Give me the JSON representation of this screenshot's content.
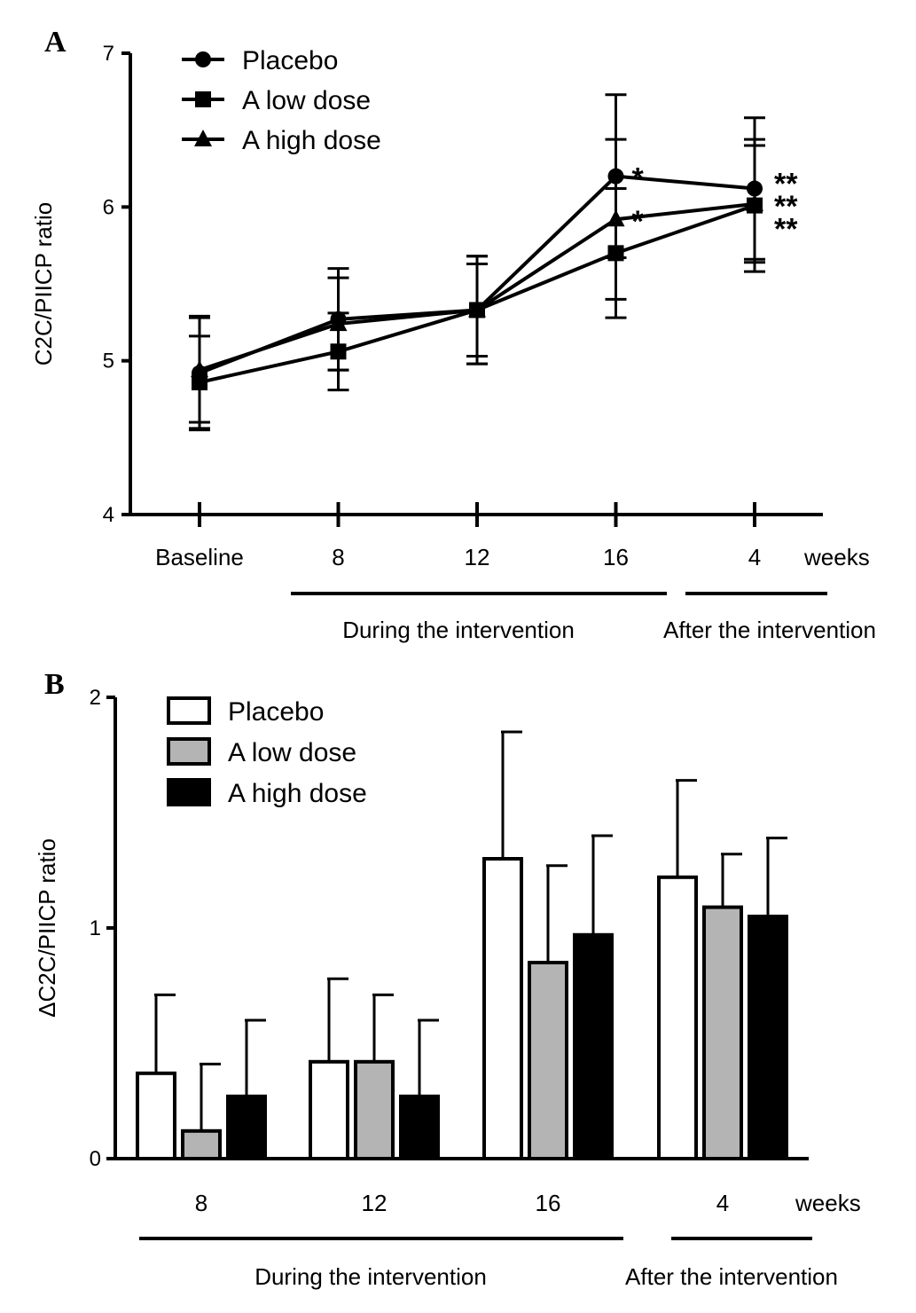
{
  "chart_data": [
    {
      "panel": "A",
      "type": "line",
      "categories": [
        "Baseline",
        "8",
        "12",
        "16",
        "4"
      ],
      "x_unit_label": "weeks",
      "ylabel": "C2C/PIICP ratio",
      "ylim": [
        4,
        7
      ],
      "yticks": [
        "4",
        "5",
        "6",
        "7"
      ],
      "grid": false,
      "legend_position": "top-left",
      "period_labels": [
        "During the intervention",
        "After the intervention"
      ],
      "series": [
        {
          "name": "Placebo",
          "marker": "circle",
          "values": [
            4.92,
            5.27,
            5.33,
            6.2,
            6.12
          ],
          "err": [
            0.37,
            0.33,
            0.35,
            0.53,
            0.46
          ]
        },
        {
          "name": "A low dose",
          "marker": "square",
          "values": [
            4.86,
            5.06,
            5.33,
            5.7,
            6.01
          ],
          "err": [
            0.3,
            0.25,
            0.35,
            0.42,
            0.43
          ]
        },
        {
          "name": "A high dose",
          "marker": "triangle",
          "values": [
            4.94,
            5.24,
            5.33,
            5.92,
            6.02
          ],
          "err": [
            0.34,
            0.3,
            0.3,
            0.52,
            0.38
          ]
        }
      ],
      "annotations": [
        {
          "category": "16",
          "series": "Placebo",
          "text": "*"
        },
        {
          "category": "16",
          "series": "A high dose",
          "text": "*"
        },
        {
          "category": "4",
          "series": "Placebo",
          "text": "**"
        },
        {
          "category": "4",
          "series": "A high dose",
          "text": "**"
        },
        {
          "category": "4",
          "series": "A low dose",
          "text": "**"
        }
      ]
    },
    {
      "panel": "B",
      "type": "bar",
      "categories": [
        "8",
        "12",
        "16",
        "4"
      ],
      "x_unit_label": "weeks",
      "ylabel": "ΔC2C/PIICP ratio",
      "ylim": [
        0,
        2
      ],
      "yticks": [
        "0",
        "1",
        "2"
      ],
      "grid": false,
      "legend_position": "top-left",
      "period_labels": [
        "During the intervention",
        "After the intervention"
      ],
      "series": [
        {
          "name": "Placebo",
          "fill": "#ffffff",
          "values": [
            0.37,
            0.42,
            1.3,
            1.22
          ],
          "err": [
            0.34,
            0.36,
            0.55,
            0.42
          ]
        },
        {
          "name": "A low dose",
          "fill": "#b4b4b4",
          "values": [
            0.12,
            0.42,
            0.85,
            1.09
          ],
          "err": [
            0.29,
            0.29,
            0.42,
            0.23
          ]
        },
        {
          "name": "A high dose",
          "fill": "#000000",
          "values": [
            0.27,
            0.27,
            0.97,
            1.05
          ],
          "err": [
            0.33,
            0.33,
            0.43,
            0.34
          ]
        }
      ]
    }
  ],
  "panels": [
    {
      "letter": "A"
    },
    {
      "letter": "B"
    }
  ]
}
